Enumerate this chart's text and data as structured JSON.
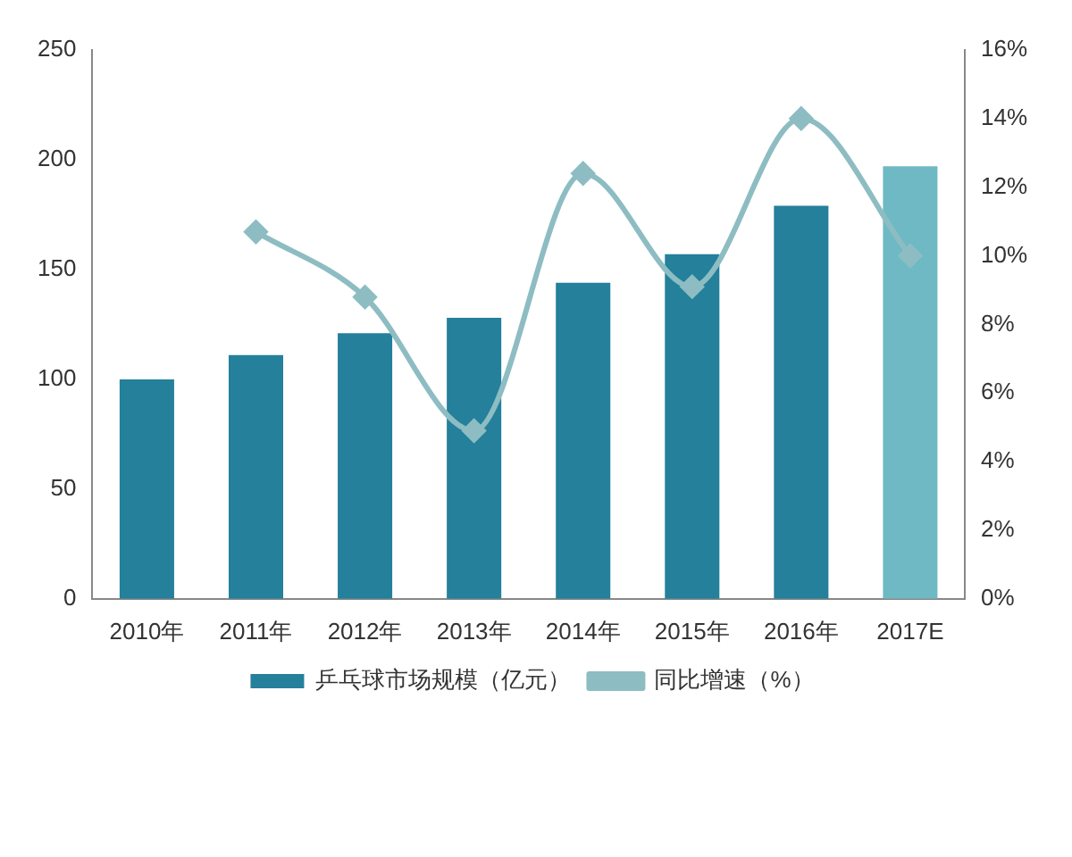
{
  "chart_data": {
    "type": "bar",
    "categories": [
      "2010年",
      "2011年",
      "2012年",
      "2013年",
      "2014年",
      "2015年",
      "2016年",
      "2017E"
    ],
    "series": [
      {
        "name": "乒乓球市场规模（亿元）",
        "color": "#24809b",
        "colors": [
          "#24809b",
          "#24809b",
          "#24809b",
          "#24809b",
          "#24809b",
          "#24809b",
          "#24809b",
          "#6fb9c4"
        ],
        "values": [
          100,
          111,
          121,
          128,
          144,
          157,
          179,
          197
        ]
      },
      {
        "name": "同比增速（%）",
        "type": "line",
        "axis": "y2",
        "color": "#8dbdc2",
        "marker": "diamond",
        "values": [
          null,
          10.7,
          8.8,
          4.9,
          12.4,
          9.1,
          14.0,
          10.0
        ]
      }
    ],
    "ylim": [
      0,
      250
    ],
    "yticks": [
      0,
      50,
      100,
      150,
      200,
      250
    ],
    "y2lim": [
      0,
      16
    ],
    "y2ticks": [
      {
        "value": 0,
        "label": "0%"
      },
      {
        "value": 2,
        "label": "2%"
      },
      {
        "value": 4,
        "label": "4%"
      },
      {
        "value": 6,
        "label": "6%"
      },
      {
        "value": 8,
        "label": "8%"
      },
      {
        "value": 10,
        "label": "10%"
      },
      {
        "value": 12,
        "label": "12%"
      },
      {
        "value": 14,
        "label": "14%"
      },
      {
        "value": 16,
        "label": "16%"
      }
    ],
    "grid": false,
    "legend": "bottom"
  }
}
